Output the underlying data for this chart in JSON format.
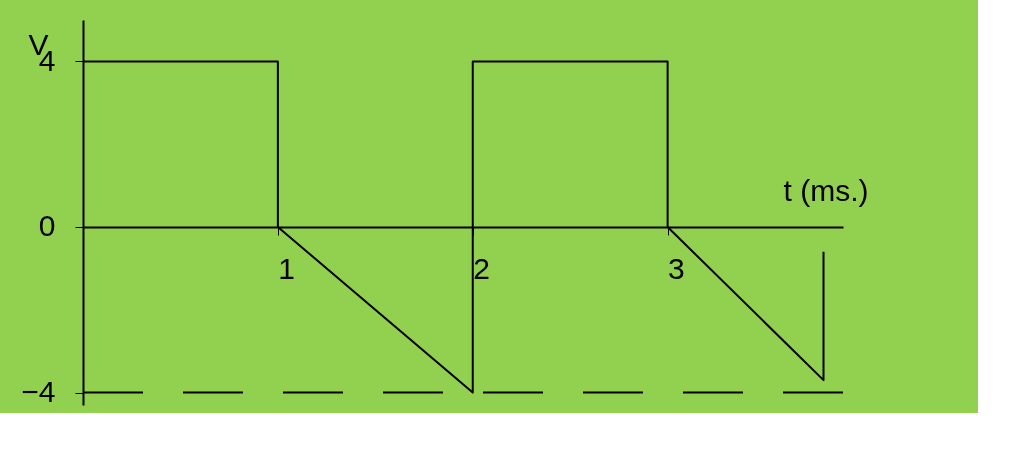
{
  "chart_data": {
    "type": "line",
    "xlabel": "t (ms.)",
    "ylabel": "V",
    "x": [
      0,
      1,
      1,
      2,
      2,
      3,
      3,
      3.8,
      3.8
    ],
    "series": [
      {
        "color": "#000000",
        "values": [
          4,
          4,
          0,
          -4,
          4,
          4,
          0,
          -3.7,
          -0.6
        ]
      }
    ],
    "xlim": [
      0,
      3.9
    ],
    "ylim": [
      -4.3,
      5
    ],
    "xticks": [
      1,
      2,
      3
    ],
    "yticks": [
      4,
      0,
      -4
    ],
    "ref_lines": [
      {
        "axis": "y",
        "value": -4,
        "line_style": "dashed",
        "color": "#000000"
      }
    ],
    "grid": false,
    "marker": "none",
    "line_style": "solid"
  }
}
